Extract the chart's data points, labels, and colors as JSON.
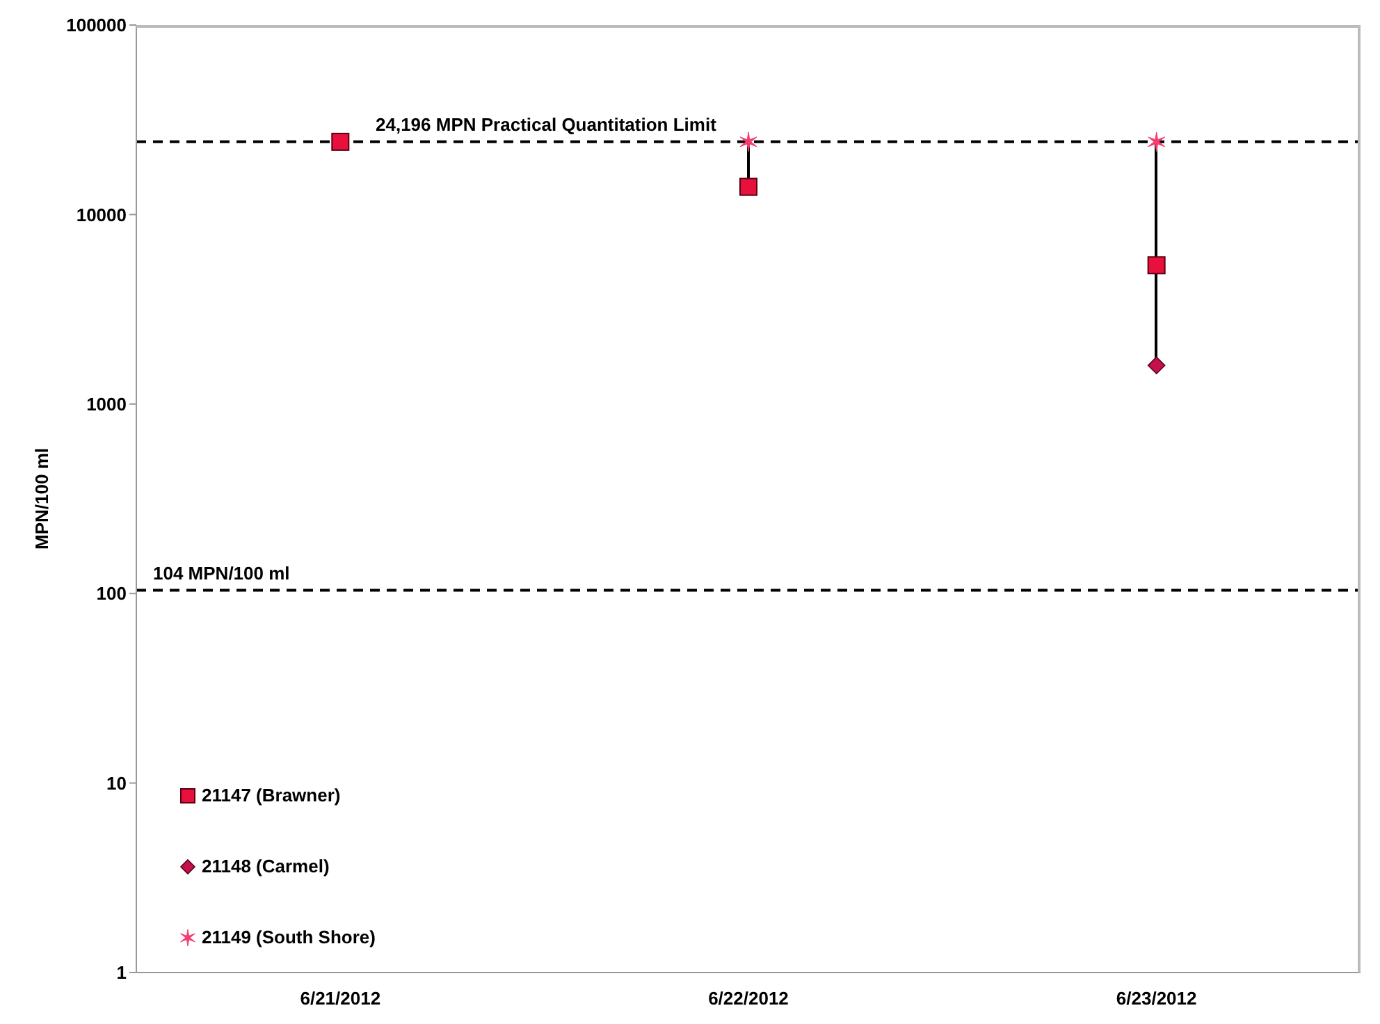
{
  "chart_data": {
    "type": "scatter",
    "ylabel": "MPN/100 ml",
    "categories": [
      "6/21/2012",
      "6/22/2012",
      "6/23/2012"
    ],
    "series": [
      {
        "name": "21147 (Brawner)",
        "color": "#e8103c",
        "marker": "square",
        "values": [
          24196,
          14000,
          5400
        ]
      },
      {
        "name": "21148 (Carmel)",
        "color": "#c4104c",
        "marker": "diamond",
        "values": [
          null,
          null,
          1600
        ]
      },
      {
        "name": "21149 (South Shore)",
        "color": "#f43c70",
        "marker": "cross",
        "values": [
          null,
          24196,
          24196
        ]
      }
    ],
    "log": true,
    "ylim": [
      1,
      100000
    ],
    "yticks": [
      1,
      10,
      100,
      1000,
      10000,
      100000
    ],
    "legend": "bottom left",
    "ref_lines": [
      {
        "axis": "y",
        "value": 24196,
        "label": "24,196 MPN Practical Quantitation Limit",
        "color": "#000000",
        "line_style": "dashed"
      },
      {
        "axis": "y",
        "value": 104,
        "label": "104 MPN/100 ml",
        "color": "#000000",
        "line_style": "dashed"
      }
    ]
  }
}
